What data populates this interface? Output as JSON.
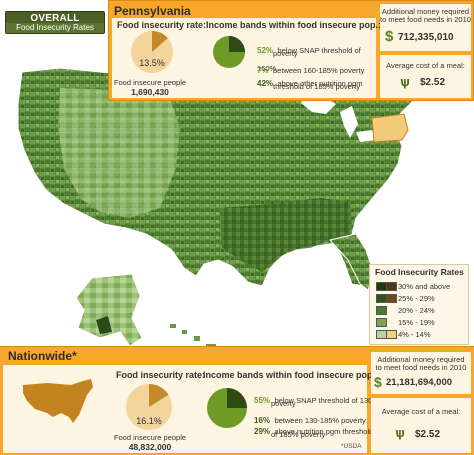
{
  "header": {
    "tab_title": "OVERALL",
    "tab_subtitle": "Food Insecurity Rates"
  },
  "state": {
    "name": "Pennsylvania",
    "rate_label": "Food insecurity rate:",
    "rate_value": "13.5%",
    "rate_fraction": 0.135,
    "people_label": "Food insecure people",
    "people_value": "1,690,430",
    "bands_label": "Income bands within food insecure pop.:",
    "bands": [
      {
        "pct": "52%",
        "text_l1": "below SNAP threshold of 160%",
        "text_l2": "poverty",
        "fraction": 0.52
      },
      {
        "pct": "7%",
        "text_l1": "between 160-185% poverty",
        "text_l2": "",
        "fraction": 0.07
      },
      {
        "pct": "42%",
        "text_l1": "above other nutrition pgm",
        "text_l2": "threshold of 185% poverty",
        "fraction": 0.42
      }
    ],
    "money_label_l1": "Additional money required",
    "money_label_l2": "to meet food needs in 2010",
    "money_value": "712,335,010",
    "meal_label": "Average cost of a meal:",
    "meal_value": "$2.52"
  },
  "nation": {
    "name": "Nationwide*",
    "rate_label": "Food insecurity rate:",
    "rate_value": "16.1%",
    "rate_fraction": 0.161,
    "people_label": "Food insecure people",
    "people_value": "48,832,000",
    "bands_label": "Income bands within food insecure pop.:",
    "bands": [
      {
        "pct": "55%",
        "text_l1": "below SNAP threshold of 130%",
        "text_l2": "poverty",
        "fraction": 0.55
      },
      {
        "pct": "16%",
        "text_l1": "between 130-185% poverty",
        "text_l2": "",
        "fraction": 0.16
      },
      {
        "pct": "29%",
        "text_l1": "above nutrition pgm threshold",
        "text_l2": "of 185% poverty",
        "fraction": 0.29
      }
    ],
    "footnote": "*USDA",
    "money_label_l1": "Additional money required",
    "money_label_l2": "to meet food needs in 2010",
    "money_value": "21,181,694,000",
    "meal_label": "Average cost of a meal:",
    "meal_value": "$2.52"
  },
  "legend": {
    "title": "Food Insecurity Rates",
    "items": [
      {
        "label": "30% and above",
        "colors": [
          "#1f3a12",
          "#4a3a14"
        ]
      },
      {
        "label": "25% - 29%",
        "colors": [
          "#2e5418",
          "#6a4c1a"
        ]
      },
      {
        "label": "20% - 24%",
        "colors": [
          "#4a7a2c",
          ""
        ]
      },
      {
        "label": "15% - 19%",
        "colors": [
          "#7aa552",
          ""
        ]
      },
      {
        "label": "4% - 14%",
        "colors": [
          "#b9d49a",
          "#f3d07c"
        ]
      }
    ]
  },
  "colors": {
    "accent_orange": "#f7a82a",
    "panel_cream": "#fdf4e2",
    "map_green": "#5b8a3a",
    "highlight_state": "#f3c97a"
  }
}
